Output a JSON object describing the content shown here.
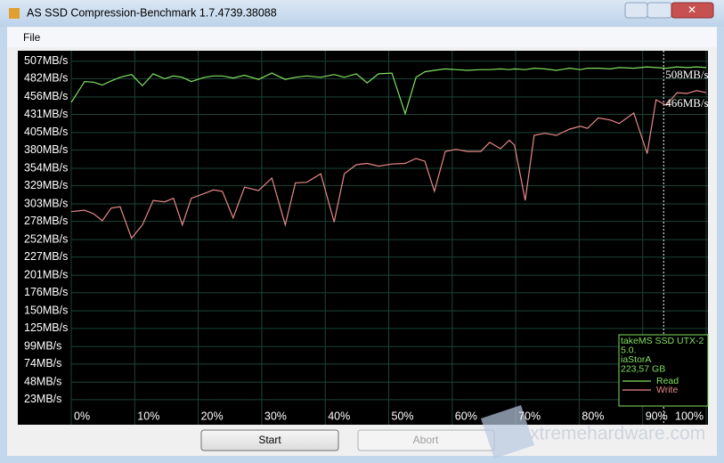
{
  "window": {
    "title": "AS SSD Compression-Benchmark 1.7.4739.38088",
    "menu": [
      "File"
    ],
    "buttons": [
      "Start",
      "Abort"
    ],
    "watermark": "xtremehardware.com"
  },
  "chart_data": {
    "type": "line",
    "x": [
      0,
      2.1,
      3.5,
      4.9,
      6.3,
      7.7,
      9.5,
      11.2,
      12.9,
      14.7,
      16.1,
      17.5,
      18.9,
      21,
      22.4,
      23.8,
      25.5,
      27.3,
      29.5,
      31.6,
      33.7,
      35.3,
      37.1,
      39.3,
      41.4,
      43,
      44.9,
      46.6,
      48.4,
      50.5,
      52.6,
      54.3,
      55.7,
      57.2,
      58.9,
      60.6,
      62.4,
      64.5,
      65.9,
      67.6,
      69,
      69.8,
      71.5,
      72.9,
      74.6,
      76.4,
      78.5,
      80.2,
      81.3,
      83,
      84.9,
      86.3,
      88.6,
      90.7,
      92.1,
      93.7,
      95.4,
      97,
      98.5,
      100
    ],
    "series": [
      {
        "name": "Read",
        "color": "#80e060",
        "values": [
          448,
          478,
          477,
          473,
          479,
          484,
          488,
          472,
          489,
          482,
          486,
          484,
          478,
          484,
          486,
          486,
          483,
          487,
          481,
          490,
          481,
          484,
          486,
          484,
          488,
          484,
          489,
          476,
          489,
          490,
          432,
          484,
          492,
          494,
          496,
          495,
          494,
          495,
          495,
          496,
          495,
          496,
          495,
          497,
          496,
          494,
          497,
          495,
          497,
          497,
          496,
          498,
          497,
          499,
          498,
          497,
          499,
          498,
          499,
          498
        ]
      },
      {
        "name": "Write",
        "color": "#e88888",
        "values": [
          292,
          294,
          289,
          279,
          297,
          299,
          254,
          273,
          308,
          306,
          311,
          273,
          311,
          318,
          323,
          321,
          283,
          327,
          322,
          340,
          273,
          333,
          334,
          346,
          277,
          346,
          359,
          361,
          357,
          360,
          361,
          368,
          364,
          321,
          378,
          381,
          378,
          378,
          391,
          382,
          394,
          387,
          308,
          401,
          404,
          401,
          410,
          414,
          411,
          426,
          423,
          418,
          433,
          375,
          452,
          444,
          462,
          461,
          465,
          462
        ]
      }
    ],
    "xlim": [
      0,
      100
    ],
    "xticks": [
      {
        "value": 0,
        "label": "0%"
      },
      {
        "value": 10,
        "label": "10%"
      },
      {
        "value": 20,
        "label": "20%"
      },
      {
        "value": 30,
        "label": "30%"
      },
      {
        "value": 40,
        "label": "40%"
      },
      {
        "value": 50,
        "label": "50%"
      },
      {
        "value": 60,
        "label": "60%"
      },
      {
        "value": 70,
        "label": "70%"
      },
      {
        "value": 80,
        "label": "80%"
      },
      {
        "value": 90,
        "label": "90%"
      },
      {
        "value": 100,
        "label": "100%"
      }
    ],
    "ylim": [
      0,
      522
    ],
    "yticks": [
      {
        "value": 23,
        "label": "23MB/s"
      },
      {
        "value": 48,
        "label": "48MB/s"
      },
      {
        "value": 74,
        "label": "74MB/s"
      },
      {
        "value": 99,
        "label": "99MB/s"
      },
      {
        "value": 125,
        "label": "125MB/s"
      },
      {
        "value": 150,
        "label": "150MB/s"
      },
      {
        "value": 176,
        "label": "176MB/s"
      },
      {
        "value": 201,
        "label": "201MB/s"
      },
      {
        "value": 227,
        "label": "227MB/s"
      },
      {
        "value": 252,
        "label": "252MB/s"
      },
      {
        "value": 278,
        "label": "278MB/s"
      },
      {
        "value": 303,
        "label": "303MB/s"
      },
      {
        "value": 329,
        "label": "329MB/s"
      },
      {
        "value": 354,
        "label": "354MB/s"
      },
      {
        "value": 380,
        "label": "380MB/s"
      },
      {
        "value": 405,
        "label": "405MB/s"
      },
      {
        "value": 431,
        "label": "431MB/s"
      },
      {
        "value": 456,
        "label": "456MB/s"
      },
      {
        "value": 482,
        "label": "482MB/s"
      },
      {
        "value": 507,
        "label": "507MB/s"
      }
    ],
    "grid": true,
    "cursor": {
      "x": 93.3,
      "labels": [
        "508MB/s",
        "466MB/s"
      ]
    },
    "legend_info": [
      "takeMS  SSD UTX-2",
      "5.0.",
      "iaStorA",
      "223,57 GB"
    ],
    "legend": "lower right"
  }
}
